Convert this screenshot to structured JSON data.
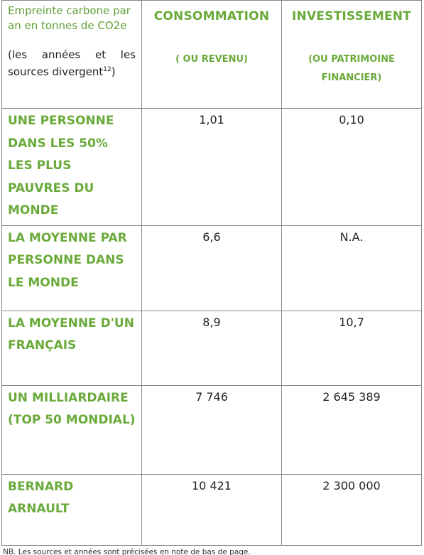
{
  "table": {
    "corner": {
      "title": "Empreinte carbone par an en tonnes de CO2e",
      "note": "(les années et les sources divergent",
      "note_ref": "12",
      "note_end": ")"
    },
    "columns": [
      {
        "title": "CONSOMMATION",
        "subtitle": "( OU REVENU)"
      },
      {
        "title": "INVESTISSEMENT",
        "subtitle": "(OU PATRIMOINE FINANCIER)"
      }
    ],
    "rows": [
      [
        "UNE PERSONNE DANS LES 50% LES PLUS PAUVRES DU MONDE",
        "1,01",
        "0,10"
      ],
      [
        "LA MOYENNE PAR PERSONNE DANS LE MONDE",
        "6,6",
        "N.A."
      ],
      [
        "LA MOYENNE D'UN FRANÇAIS",
        "8,9",
        "10,7"
      ],
      [
        "UN MILLIARDAIRE (TOP 50 MONDIAL)",
        "7 746",
        "2 645 389"
      ],
      [
        "BERNARD ARNAULT",
        "10 421",
        "2 300 000"
      ]
    ]
  },
  "footnote": "NB. Les sources et années sont précisées en note de bas de page."
}
